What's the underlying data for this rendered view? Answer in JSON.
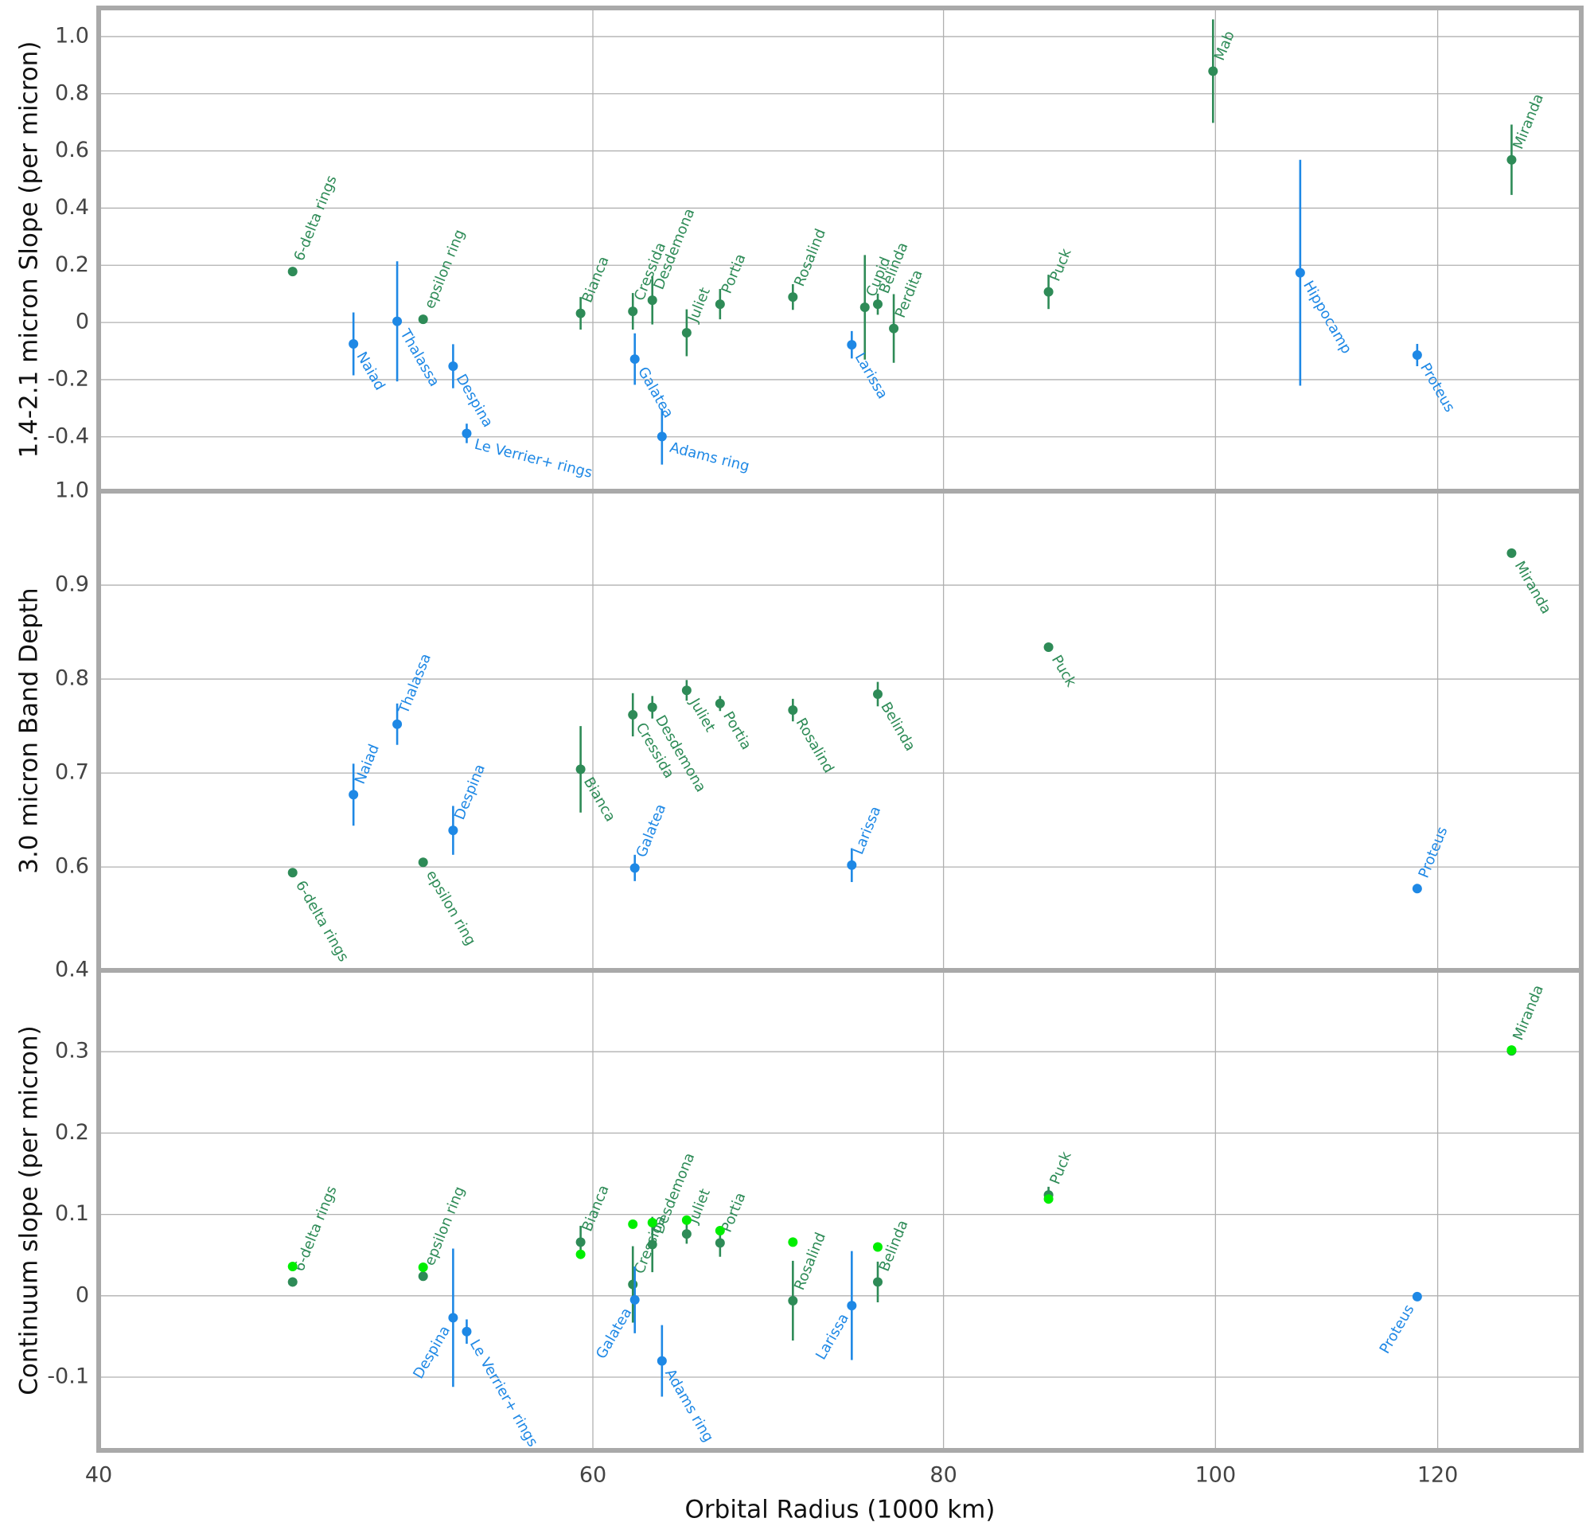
{
  "chart_data": [
    {
      "type": "scatter",
      "ylabel": "1.4-2.1 micron Slope (per micron)",
      "xscale": "log",
      "grid": true,
      "xlim": [
        40,
        135
      ],
      "xticks": [
        40,
        60,
        80,
        100,
        120
      ],
      "ylim": [
        -0.59,
        1.1
      ],
      "yticks": [
        -0.4,
        -0.2,
        0,
        0.2,
        0.4,
        0.6,
        0.8,
        {
          "value": 1,
          "label": "1.0"
        }
      ],
      "series": [
        {
          "color": "#2e8b57",
          "x": [
            46.9,
            52.2,
            59.4,
            62.0,
            63.0,
            64.8,
            66.6,
            70.7,
            75.0,
            75.8,
            76.8,
            87.2,
            99.8,
            127.5
          ],
          "values": [
            0.178,
            0.011,
            0.032,
            0.039,
            0.078,
            -0.036,
            0.064,
            0.089,
            0.053,
            0.064,
            -0.021,
            0.107,
            0.879,
            0.569
          ],
          "errors": [
            null,
            0.01,
            0.057,
            0.064,
            0.085,
            0.082,
            0.053,
            0.045,
            0.183,
            0.037,
            0.12,
            0.06,
            0.181,
            0.123
          ],
          "point_labels": [
            "6-delta rings",
            "epsilon ring",
            "Bianca",
            "Cressida",
            "Desdemona",
            "Juliet",
            "Portia",
            "Rosalind",
            "Cupid",
            "Belinda",
            "Perdita",
            "Puck",
            "Mab",
            "Miranda"
          ]
        },
        {
          "color": "#1e88e5",
          "x": [
            49.3,
            51.1,
            53.5,
            54.1,
            62.1,
            63.5,
            74.2,
            107.2,
            118.0
          ],
          "values": [
            -0.075,
            0.004,
            -0.153,
            -0.388,
            -0.128,
            -0.399,
            -0.078,
            0.174,
            -0.114
          ],
          "errors": [
            0.11,
            0.21,
            0.077,
            0.034,
            0.09,
            0.098,
            0.048,
            0.395,
            0.039
          ],
          "point_labels": [
            "Naiad",
            "Thalassa",
            "Despina",
            "Le Verrier+ rings",
            "Galatea",
            "Adams ring",
            "Larissa",
            "Hippocamp",
            "Proteus"
          ]
        }
      ]
    },
    {
      "type": "scatter",
      "ylabel": "3.0 micron Band Depth",
      "xscale": "log",
      "grid": true,
      "xlim": [
        40,
        135
      ],
      "xticks": [
        40,
        60,
        80,
        100,
        120
      ],
      "ylim": [
        0.49,
        1.0
      ],
      "yticks": [
        0.6,
        0.7,
        0.8,
        0.9,
        {
          "value": 1,
          "label": "1.0"
        }
      ],
      "series": [
        {
          "color": "#2e8b57",
          "x": [
            46.9,
            52.2,
            59.4,
            62.0,
            63.0,
            64.8,
            66.6,
            70.7,
            75.8,
            87.2,
            127.5
          ],
          "values": [
            0.594,
            0.605,
            0.704,
            0.762,
            0.77,
            0.788,
            0.774,
            0.767,
            0.784,
            0.834,
            0.934
          ],
          "errors": [
            null,
            null,
            0.046,
            0.023,
            0.012,
            0.011,
            0.008,
            0.012,
            0.013,
            null,
            null
          ],
          "point_labels": [
            "6-delta rings",
            "epsilon ring",
            "Bianca",
            "Cressida",
            "Desdemona",
            "Juliet",
            "Portia",
            "Rosalind",
            "Belinda",
            "Puck",
            "Miranda"
          ]
        },
        {
          "color": "#1e88e5",
          "x": [
            49.3,
            51.1,
            53.5,
            62.1,
            74.2,
            118.0
          ],
          "values": [
            0.677,
            0.752,
            0.639,
            0.599,
            0.602,
            0.577
          ],
          "errors": [
            0.033,
            0.022,
            0.026,
            0.014,
            0.018,
            null
          ],
          "point_labels": [
            "Naiad",
            "Thalassa",
            "Despina",
            "Galatea",
            "Larissa",
            "Proteus"
          ]
        }
      ]
    },
    {
      "type": "scatter",
      "ylabel": "Continuum slope (per micron)",
      "xlabel": "Orbital Radius (1000 km)",
      "xscale": "log",
      "grid": true,
      "xlim": [
        40,
        135
      ],
      "xticks": [
        40,
        60,
        80,
        100,
        120
      ],
      "ylim": [
        -0.19,
        0.4
      ],
      "yticks": [
        -0.1,
        0,
        0.1,
        0.2,
        0.3,
        0.4
      ],
      "series": [
        {
          "color": "#2e8b57",
          "x": [
            46.9,
            52.2,
            59.4,
            62.0,
            63.0,
            64.8,
            66.6,
            70.7,
            75.8,
            87.2,
            127.5
          ],
          "values": [
            0.017,
            0.024,
            0.066,
            0.014,
            0.063,
            0.076,
            0.065,
            -0.006,
            0.017,
            0.124,
            0.301
          ],
          "errors": [
            null,
            null,
            0.02,
            0.047,
            0.034,
            0.012,
            0.017,
            0.049,
            0.025,
            0.01,
            null
          ],
          "point_labels": [
            "6-delta rings",
            "epsilon ring",
            "Bianca",
            "Cressida",
            "Desdemona",
            "Juliet",
            "Portia",
            "Rosalind",
            "Belinda",
            "Puck",
            "Miranda"
          ]
        },
        {
          "color": "#00ee00",
          "x": [
            46.9,
            52.2,
            59.4,
            62.0,
            63.0,
            64.8,
            66.6,
            70.7,
            75.8,
            87.2,
            127.5
          ],
          "values": [
            0.036,
            0.035,
            0.051,
            0.088,
            0.09,
            0.093,
            0.08,
            0.066,
            0.06,
            0.119,
            0.302
          ]
        },
        {
          "color": "#1e88e5",
          "x": [
            53.5,
            54.1,
            62.1,
            63.5,
            74.2,
            118.0
          ],
          "values": [
            -0.027,
            -0.044,
            -0.005,
            -0.08,
            -0.012,
            -0.001
          ],
          "errors": [
            0.085,
            0.015,
            0.041,
            0.044,
            0.067,
            null
          ],
          "point_labels": [
            "Despina",
            "Le Verrier+ rings",
            "Galatea",
            "Adams ring",
            "Larissa",
            "Proteus"
          ]
        }
      ]
    }
  ]
}
